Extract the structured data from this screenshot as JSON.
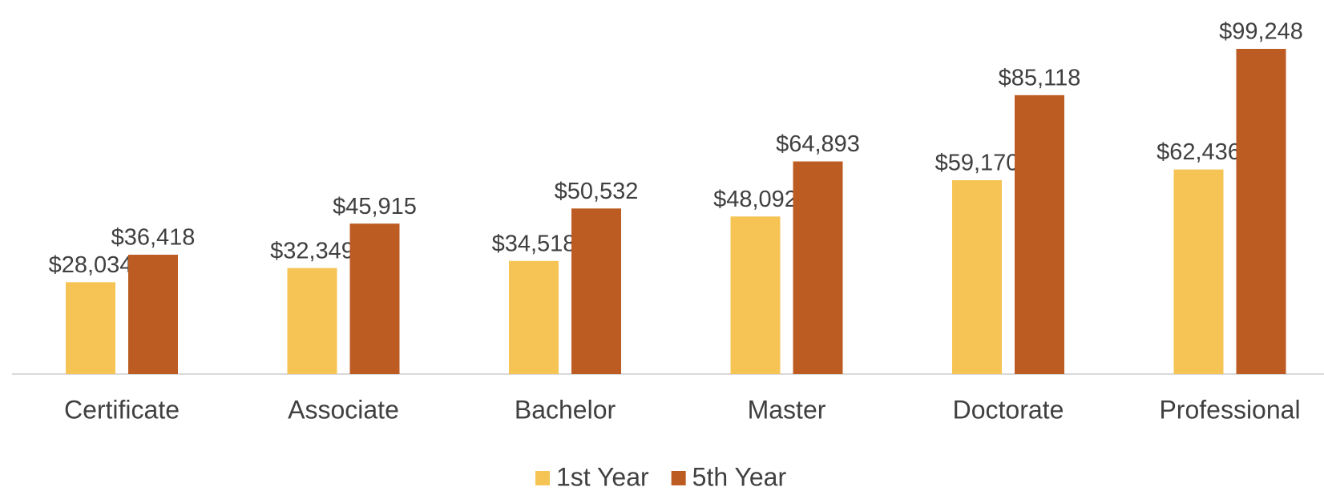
{
  "chart_data": {
    "type": "bar",
    "categories": [
      "Certificate",
      "Associate",
      "Bachelor",
      "Master",
      "Doctorate",
      "Professional"
    ],
    "series": [
      {
        "name": "1st Year",
        "color": "#f6c455",
        "values": [
          28034,
          32349,
          34518,
          48092,
          59170,
          62436
        ],
        "value_labels": [
          "$28,034",
          "$32,349",
          "$34,518",
          "$48,092",
          "$59,170",
          "$62,436"
        ]
      },
      {
        "name": "5th Year",
        "color": "#bc5b22",
        "values": [
          36418,
          45915,
          50532,
          64893,
          85118,
          99248
        ],
        "value_labels": [
          "$36,418",
          "$45,915",
          "$50,532",
          "$64,893",
          "$85,118",
          "$99,248"
        ]
      }
    ],
    "legend": "bottom"
  }
}
